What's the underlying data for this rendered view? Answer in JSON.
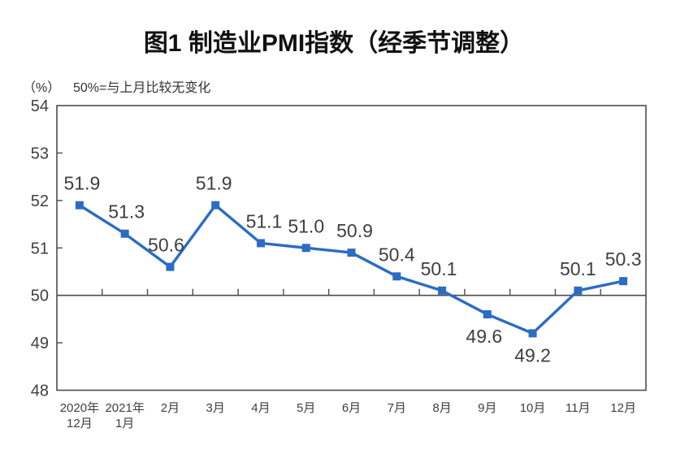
{
  "chart_data": {
    "type": "line",
    "title": "图1 制造业PMI指数（经季节调整）",
    "unit_label": "（%）",
    "subtitle": "50%=与上月比较无变化",
    "xlabel": "",
    "ylabel": "%",
    "categories": [
      "2020年12月",
      "2021年1月",
      "2月",
      "3月",
      "4月",
      "5月",
      "6月",
      "7月",
      "8月",
      "9月",
      "10月",
      "11月",
      "12月"
    ],
    "category_tick_lines": [
      [
        "2020年",
        "12月"
      ],
      [
        "2021年",
        "1月"
      ],
      [
        "2月"
      ],
      [
        "3月"
      ],
      [
        "4月"
      ],
      [
        "5月"
      ],
      [
        "6月"
      ],
      [
        "7月"
      ],
      [
        "8月"
      ],
      [
        "9月"
      ],
      [
        "10月"
      ],
      [
        "11月"
      ],
      [
        "12月"
      ]
    ],
    "series": [
      {
        "name": "制造业PMI",
        "values": [
          51.9,
          51.3,
          50.6,
          51.9,
          51.1,
          51.0,
          50.9,
          50.4,
          50.1,
          49.6,
          49.2,
          50.1,
          50.3
        ]
      }
    ],
    "point_labels": [
      "51.9",
      "51.3",
      "50.6",
      "51.9",
      "51.1",
      "51.0",
      "50.9",
      "50.4",
      "50.1",
      "49.6",
      "49.2",
      "50.1",
      "50.3"
    ],
    "label_positions": [
      "above",
      "above",
      "above",
      "above",
      "above",
      "above",
      "above",
      "above",
      "above",
      "below",
      "below",
      "above",
      "above"
    ],
    "label_dx": [
      3,
      2,
      -5,
      -2,
      4,
      0,
      4,
      0,
      -4,
      -4,
      0,
      0,
      0
    ],
    "ylim": [
      48,
      54
    ],
    "y_ticks": [
      48,
      49,
      50,
      51,
      52,
      53,
      54
    ],
    "reference_line": 50,
    "grid": false,
    "legend": "none",
    "colors": {
      "line": "#2B6CC4",
      "marker": "#2B6CC4",
      "axis": "#4D4D4D",
      "point_label_text": "#3F3F3F",
      "axis_text": "#404040"
    }
  }
}
